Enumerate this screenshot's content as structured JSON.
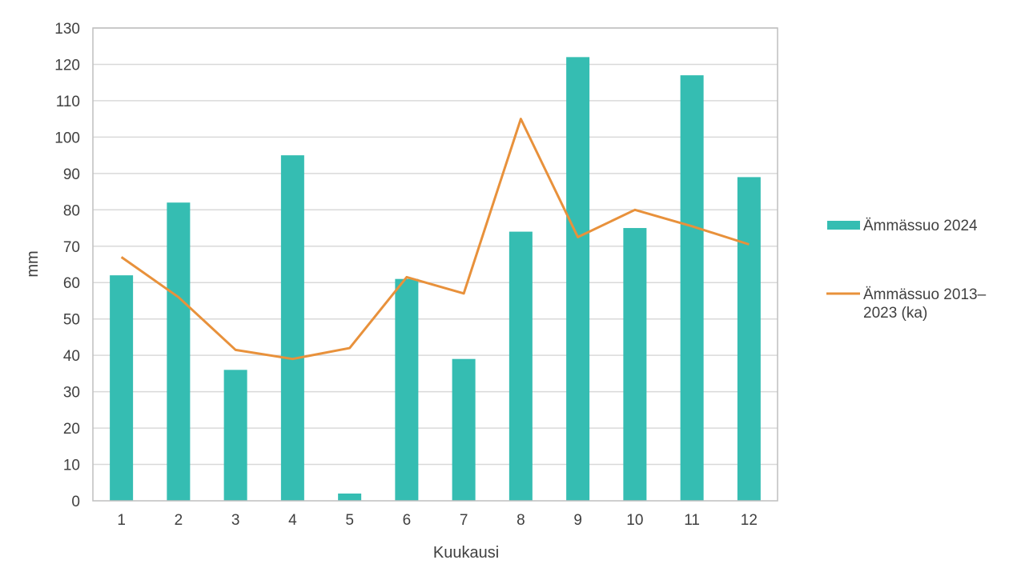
{
  "chart_data": {
    "type": "bar",
    "title": "",
    "xlabel": "Kuukausi",
    "ylabel": "mm",
    "categories": [
      "1",
      "2",
      "3",
      "4",
      "5",
      "6",
      "7",
      "8",
      "9",
      "10",
      "11",
      "12"
    ],
    "ylim": [
      0,
      130
    ],
    "ytick_step": 10,
    "grid": true,
    "legend_position": "right",
    "series": [
      {
        "name": "Ämmässuo 2024",
        "type": "bar",
        "color": "#35bdb2",
        "values": [
          62,
          82,
          36,
          95,
          2,
          61,
          39,
          74,
          122,
          75,
          117,
          89
        ]
      },
      {
        "name": "Ämmässuo 2013–2023 (ka)",
        "legend_lines": [
          "Ämmässuo 2013–",
          "2023 (ka)"
        ],
        "type": "line",
        "color": "#e8913b",
        "values": [
          67,
          56,
          41.5,
          39,
          42,
          61.5,
          57,
          105,
          72.5,
          80,
          75.5,
          70.5
        ]
      }
    ]
  }
}
